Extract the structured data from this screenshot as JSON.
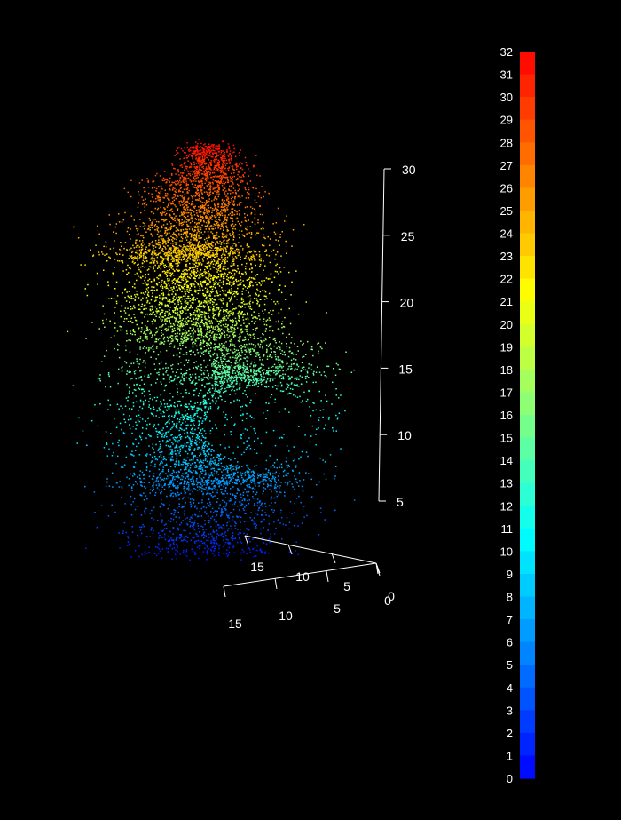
{
  "chart_data": {
    "type": "scatter",
    "subtype": "3d-point-cloud",
    "title": "",
    "xlabel": "",
    "ylabel": "",
    "zlabel": "",
    "background": "#000000",
    "z_axis": {
      "ticks": [
        "5",
        "10",
        "15",
        "20",
        "25",
        "30"
      ],
      "range": [
        5,
        30
      ]
    },
    "x_axis": {
      "ticks": [
        "15",
        "10",
        "5",
        "0"
      ]
    },
    "y_axis": {
      "ticks": [
        "15",
        "10",
        "5",
        "0"
      ]
    },
    "colorbar": {
      "min": 0,
      "max": 32,
      "labels": [
        "0",
        "1",
        "2",
        "3",
        "4",
        "5",
        "6",
        "7",
        "8",
        "9",
        "10",
        "11",
        "12",
        "13",
        "14",
        "15",
        "16",
        "17",
        "18",
        "19",
        "20",
        "21",
        "22",
        "23",
        "24",
        "25",
        "26",
        "27",
        "28",
        "29",
        "30",
        "31",
        "32"
      ],
      "palette": [
        "#0000ff",
        "#0080ff",
        "#00ffff",
        "#80ff80",
        "#ffff00",
        "#ff8000",
        "#ff0000"
      ]
    },
    "point_count": 9000,
    "height_range": [
      0,
      32
    ],
    "grid": false,
    "legend": "right colorbar"
  }
}
